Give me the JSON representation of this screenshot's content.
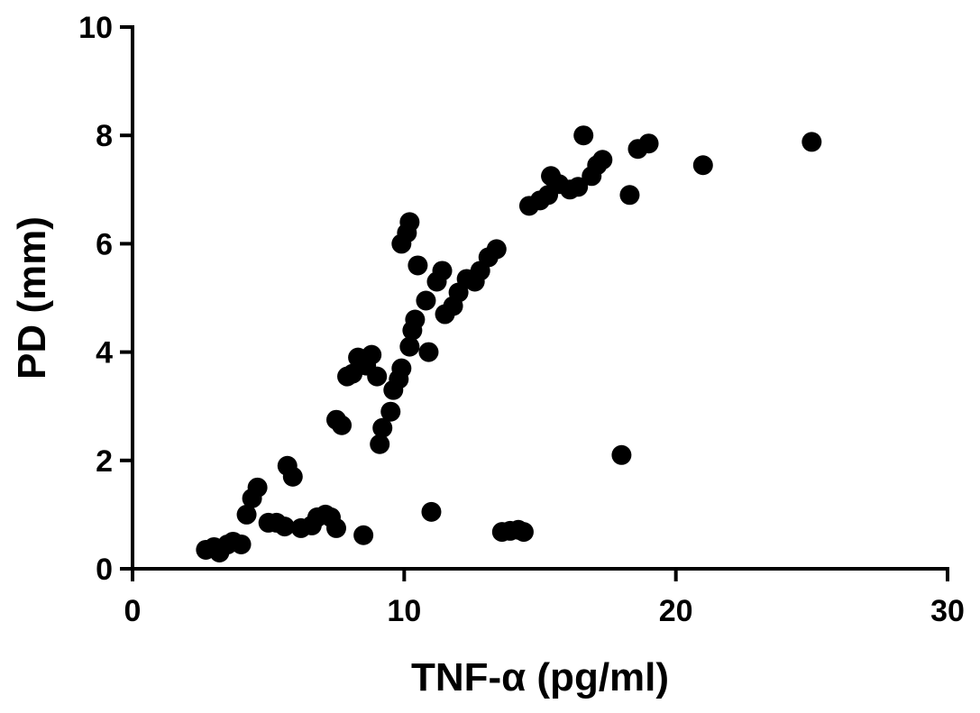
{
  "chart_data": {
    "type": "scatter",
    "title": "",
    "xlabel": "TNF-α (pg/ml)",
    "ylabel": "PD (mm)",
    "xlim": [
      0,
      30
    ],
    "ylim": [
      0,
      10
    ],
    "x_ticks": [
      0,
      10,
      20,
      30
    ],
    "y_ticks": [
      0,
      2,
      4,
      6,
      8,
      10
    ],
    "grid": false,
    "legend": "none",
    "marker_color": "#000000",
    "series": [
      {
        "points": [
          [
            2.7,
            0.35
          ],
          [
            3.0,
            0.4
          ],
          [
            3.2,
            0.3
          ],
          [
            3.5,
            0.45
          ],
          [
            3.7,
            0.5
          ],
          [
            4.0,
            0.45
          ],
          [
            4.2,
            1.0
          ],
          [
            4.4,
            1.3
          ],
          [
            4.6,
            1.5
          ],
          [
            5.0,
            0.85
          ],
          [
            5.3,
            0.85
          ],
          [
            5.6,
            0.78
          ],
          [
            5.7,
            1.9
          ],
          [
            5.9,
            1.7
          ],
          [
            6.2,
            0.75
          ],
          [
            6.6,
            0.8
          ],
          [
            6.8,
            0.95
          ],
          [
            7.1,
            1.0
          ],
          [
            7.3,
            0.95
          ],
          [
            7.5,
            0.75
          ],
          [
            7.5,
            2.75
          ],
          [
            7.7,
            2.65
          ],
          [
            7.9,
            3.55
          ],
          [
            8.1,
            3.6
          ],
          [
            8.3,
            3.9
          ],
          [
            8.5,
            0.62
          ],
          [
            8.6,
            3.75
          ],
          [
            8.8,
            3.95
          ],
          [
            9.0,
            3.55
          ],
          [
            9.1,
            2.3
          ],
          [
            9.2,
            2.6
          ],
          [
            9.5,
            2.9
          ],
          [
            9.6,
            3.3
          ],
          [
            9.8,
            3.5
          ],
          [
            9.9,
            3.7
          ],
          [
            9.9,
            6.0
          ],
          [
            10.1,
            6.2
          ],
          [
            10.2,
            6.4
          ],
          [
            10.2,
            4.1
          ],
          [
            10.3,
            4.4
          ],
          [
            10.4,
            4.6
          ],
          [
            10.5,
            5.6
          ],
          [
            10.8,
            4.95
          ],
          [
            10.9,
            4.0
          ],
          [
            11.0,
            1.05
          ],
          [
            11.2,
            5.3
          ],
          [
            11.4,
            5.5
          ],
          [
            11.5,
            4.7
          ],
          [
            11.8,
            4.85
          ],
          [
            12.0,
            5.1
          ],
          [
            12.3,
            5.35
          ],
          [
            12.6,
            5.3
          ],
          [
            12.8,
            5.5
          ],
          [
            13.1,
            5.75
          ],
          [
            13.4,
            5.9
          ],
          [
            13.6,
            0.68
          ],
          [
            13.9,
            0.7
          ],
          [
            14.2,
            0.72
          ],
          [
            14.4,
            0.68
          ],
          [
            14.6,
            6.7
          ],
          [
            15.0,
            6.8
          ],
          [
            15.3,
            6.9
          ],
          [
            15.4,
            7.25
          ],
          [
            15.7,
            7.1
          ],
          [
            16.1,
            7.0
          ],
          [
            16.4,
            7.05
          ],
          [
            16.6,
            8.0
          ],
          [
            16.9,
            7.25
          ],
          [
            17.1,
            7.45
          ],
          [
            17.3,
            7.55
          ],
          [
            18.0,
            2.1
          ],
          [
            18.3,
            6.9
          ],
          [
            18.6,
            7.75
          ],
          [
            19.0,
            7.85
          ],
          [
            21.0,
            7.45
          ],
          [
            25.0,
            7.88
          ]
        ]
      }
    ]
  }
}
